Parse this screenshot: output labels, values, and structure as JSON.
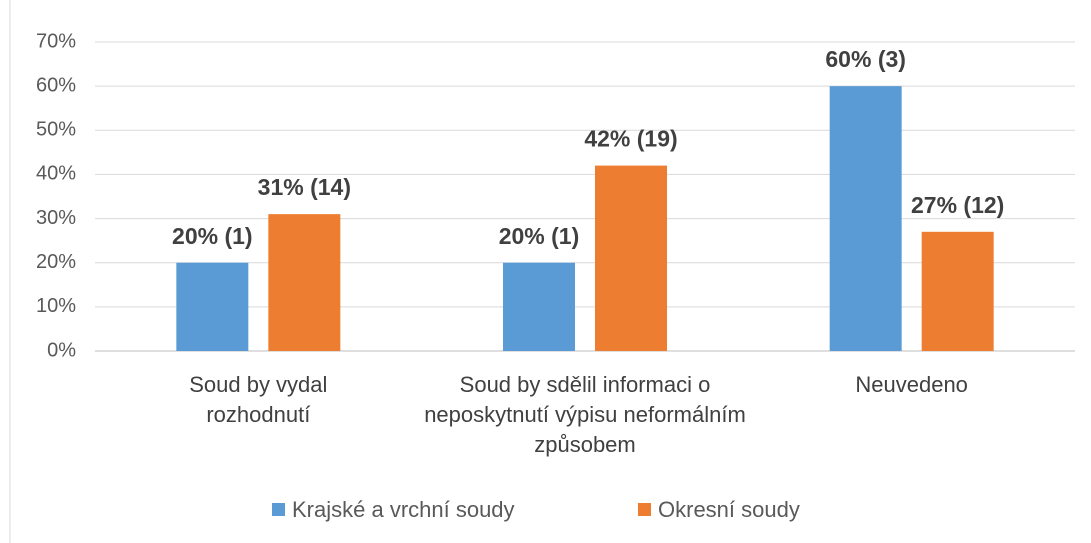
{
  "chart_data": {
    "type": "bar",
    "categories": [
      "Soud by vydal rozhodnutí",
      "Soud by sdělil informaci o neposkytnutí výpisu neformálním způsobem",
      "Neuvedeno"
    ],
    "series": [
      {
        "name": "Krajské a vrchní soudy",
        "color": "#5b9bd5",
        "values": [
          20,
          20,
          60
        ],
        "value_labels": [
          "20% (1)",
          "20% (1)",
          "60% (3)"
        ]
      },
      {
        "name": "Okresní soudy",
        "color": "#ed7d31",
        "values": [
          31,
          42,
          27
        ],
        "value_labels": [
          "31% (14)",
          "42% (19)",
          "27% (12)"
        ]
      }
    ],
    "ylim": [
      0,
      70
    ],
    "yticks": [
      {
        "value": 0,
        "label": "0%"
      },
      {
        "value": 10,
        "label": "10%"
      },
      {
        "value": 20,
        "label": "20%"
      },
      {
        "value": 30,
        "label": "30%"
      },
      {
        "value": 40,
        "label": "40%"
      },
      {
        "value": 50,
        "label": "50%"
      },
      {
        "value": 60,
        "label": "60%"
      },
      {
        "value": 70,
        "label": "70%"
      }
    ],
    "grid": true,
    "legend": "bottom"
  }
}
